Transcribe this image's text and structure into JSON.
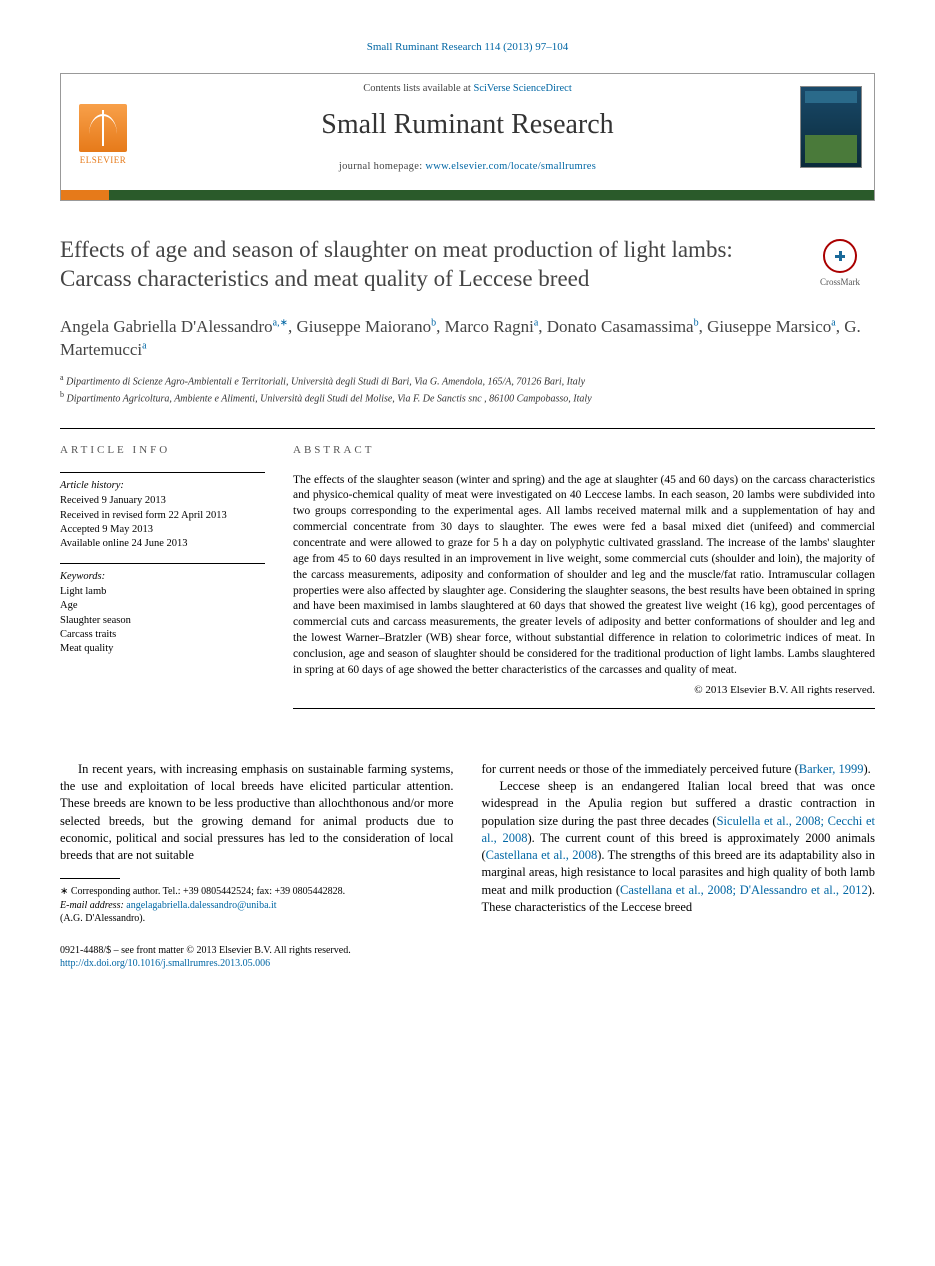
{
  "journal_ref": "Small Ruminant Research 114 (2013) 97–104",
  "header": {
    "contents_prefix": "Contents lists available at ",
    "contents_link": "SciVerse ScienceDirect",
    "journal_name": "Small Ruminant Research",
    "homepage_prefix": "journal homepage: ",
    "homepage_link": "www.elsevier.com/locate/smallrumres",
    "publisher_logo_text": "ELSEVIER"
  },
  "crossmark_label": "CrossMark",
  "title": "Effects of age and season of slaughter on meat production of light lambs: Carcass characteristics and meat quality of Leccese breed",
  "authors_html": "Angela Gabriella D'Alessandro<sup class='author-link'>a,</sup><sup class='author-link'>∗</sup>, Giuseppe Maiorano<sup class='author-link'>b</sup>, Marco Ragni<sup class='author-link'>a</sup>, Donato Casamassima<sup class='author-link'>b</sup>, Giuseppe Marsico<sup class='author-link'>a</sup>, G. Martemucci<sup class='author-link'>a</sup>",
  "affiliations": {
    "a": "Dipartimento di Scienze Agro-Ambientali e Territoriali, Università degli Studi di Bari, Via G. Amendola, 165/A, 70126 Bari, Italy",
    "b": "Dipartimento Agricoltura, Ambiente e Alimenti, Università degli Studi del Molise, Via F. De Sanctis snc , 86100 Campobasso, Italy"
  },
  "article_info": {
    "heading": "article info",
    "history_label": "Article history:",
    "received": "Received 9 January 2013",
    "revised": "Received in revised form 22 April 2013",
    "accepted": "Accepted 9 May 2013",
    "online": "Available online 24 June 2013",
    "keywords_label": "Keywords:",
    "keywords": [
      "Light lamb",
      "Age",
      "Slaughter season",
      "Carcass traits",
      "Meat quality"
    ]
  },
  "abstract": {
    "heading": "abstract",
    "text": "The effects of the slaughter season (winter and spring) and the age at slaughter (45 and 60 days) on the carcass characteristics and physico-chemical quality of meat were investigated on 40 Leccese lambs. In each season, 20 lambs were subdivided into two groups corresponding to the experimental ages. All lambs received maternal milk and a supplementation of hay and commercial concentrate from 30 days to slaughter. The ewes were fed a basal mixed diet (unifeed) and commercial concentrate and were allowed to graze for 5 h a day on polyphytic cultivated grassland. The increase of the lambs' slaughter age from 45 to 60 days resulted in an improvement in live weight, some commercial cuts (shoulder and loin), the majority of the carcass measurements, adiposity and conformation of shoulder and leg and the muscle/fat ratio. Intramuscular collagen properties were also affected by slaughter age. Considering the slaughter seasons, the best results have been obtained in spring and have been maximised in lambs slaughtered at 60 days that showed the greatest live weight (16 kg), good percentages of commercial cuts and carcass measurements, the greater levels of adiposity and better conformations of shoulder and leg and the lowest Warner–Bratzler (WB) shear force, without substantial difference in relation to colorimetric indices of meat. In conclusion, age and season of slaughter should be considered for the traditional production of light lambs. Lambs slaughtered in spring at 60 days of age showed the better characteristics of the carcasses and quality of meat.",
    "copyright": "© 2013 Elsevier B.V. All rights reserved."
  },
  "body": {
    "left_para": "In recent years, with increasing emphasis on sustainable farming systems, the use and exploitation of local breeds have elicited particular attention. These breeds are known to be less productive than allochthonous and/or more selected breeds, but the growing demand for animal products due to economic, political and social pressures has led to the consideration of local breeds that are not suitable",
    "right_p1_a": "for current needs or those of the immediately perceived future (",
    "right_p1_link": "Barker, 1999",
    "right_p1_b": ").",
    "right_p2_a": "Leccese sheep is an endangered Italian local breed that was once widespread in the Apulia region but suffered a drastic contraction in population size during the past three decades (",
    "right_p2_link1": "Siculella et al., 2008; Cecchi et al., 2008",
    "right_p2_b": "). The current count of this breed is approximately 2000 animals (",
    "right_p2_link2": "Castellana et al., 2008",
    "right_p2_c": "). The strengths of this breed are its adaptability also in marginal areas, high resistance to local parasites and high quality of both lamb meat and milk production (",
    "right_p2_link3": "Castellana et al., 2008; D'Alessandro et al., 2012",
    "right_p2_d": "). These characteristics of the Leccese breed"
  },
  "footnotes": {
    "corr_label": "∗ Corresponding author. Tel.: +39 0805442524; fax: +39 0805442828.",
    "email_label": "E-mail address: ",
    "email": "angelagabriella.dalessandro@uniba.it",
    "email_person": "(A.G. D'Alessandro)."
  },
  "footer": {
    "issn_line": "0921-4488/$ – see front matter © 2013 Elsevier B.V. All rights reserved.",
    "doi": "http://dx.doi.org/10.1016/j.smallrumres.2013.05.006"
  },
  "colors": {
    "link": "#0066a4",
    "orange": "#e67a1a",
    "green": "#2a5a2a"
  }
}
